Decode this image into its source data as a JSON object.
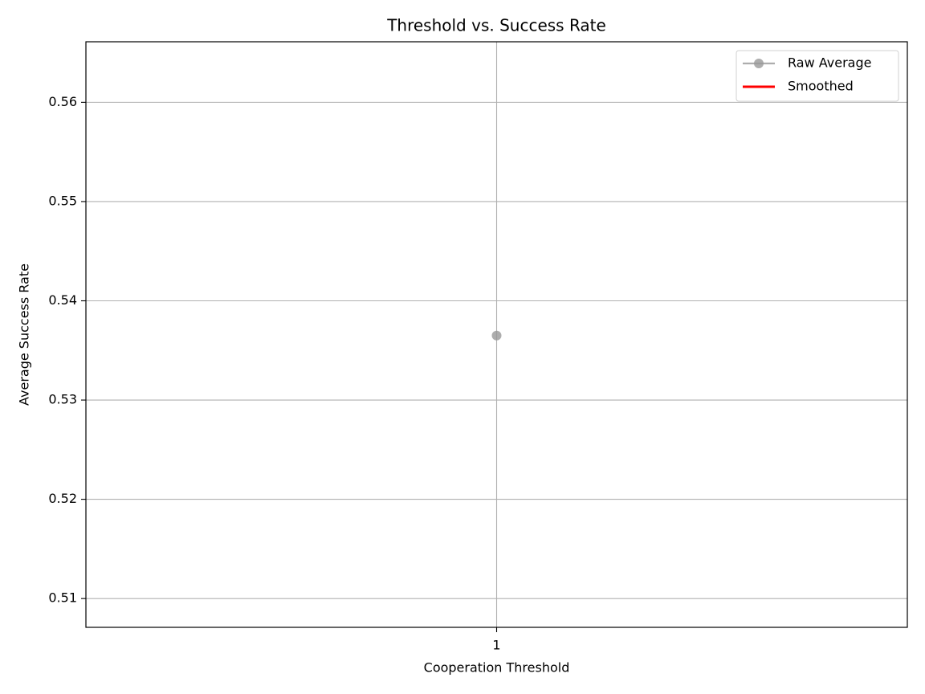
{
  "chart_data": {
    "type": "line",
    "title": "Threshold vs. Success Rate",
    "xlabel": "Cooperation Threshold",
    "ylabel": "Average Success Rate",
    "x": [
      1
    ],
    "series": [
      {
        "name": "Raw Average",
        "color": "#999999",
        "marker": "o",
        "values": [
          0.5365
        ]
      },
      {
        "name": "Smoothed",
        "color": "#ff0000",
        "values": [
          0.5365
        ]
      }
    ],
    "xlim": [
      0.94,
      1.06
    ],
    "xticks": [
      1
    ],
    "ylim": [
      0.5071,
      0.5661
    ],
    "yticks": [
      0.51,
      0.52,
      0.53,
      0.54,
      0.55,
      0.56
    ],
    "grid": true,
    "legend": "upper right"
  }
}
